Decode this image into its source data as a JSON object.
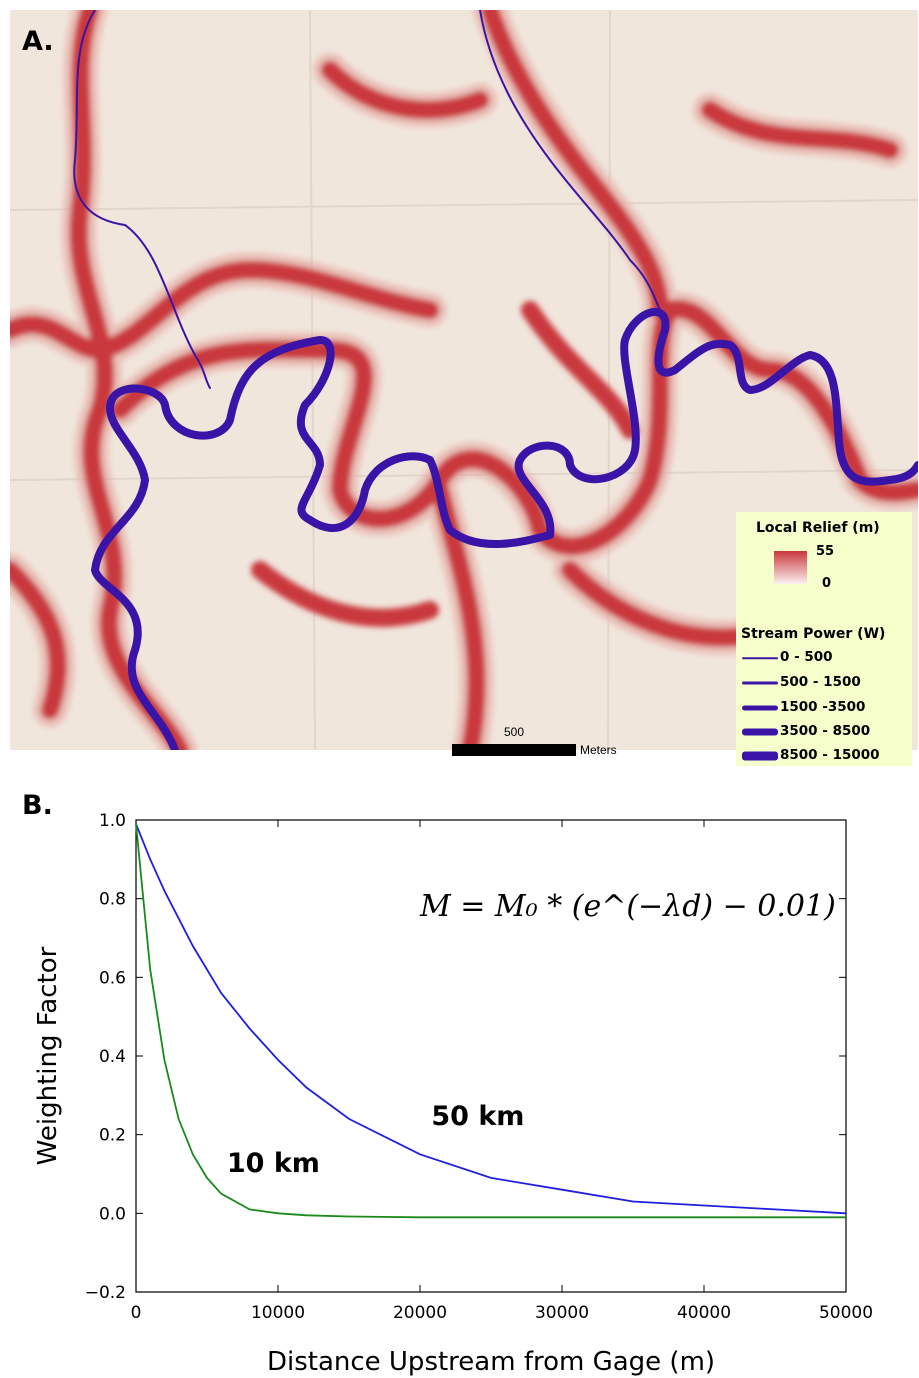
{
  "panel_a": {
    "letter": "A.",
    "legend": {
      "relief_title": "Local Relief (m)",
      "relief_max": "55",
      "relief_min": "0",
      "power_title": "Stream Power (W)",
      "power_classes": [
        "0 - 500",
        "500 - 1500",
        "1500 -3500",
        "3500 - 8500",
        "8500 - 15000"
      ]
    },
    "scalebar": {
      "value": "500",
      "unit": "Meters"
    },
    "colors": {
      "relief_high": "#c9383e",
      "relief_low": "#f1e6dc",
      "stream": "#3a14a6",
      "legend_bg": "#f6ffcc"
    }
  },
  "panel_b": {
    "letter": "B."
  },
  "chart_data": {
    "type": "line",
    "xlabel": "Distance Upstream from Gage (m)",
    "ylabel": "Weighting Factor",
    "xlim": [
      0,
      50000
    ],
    "ylim": [
      -0.2,
      1.0
    ],
    "xticks": [
      0,
      10000,
      20000,
      30000,
      40000,
      50000
    ],
    "yticks": [
      -0.2,
      0.0,
      0.2,
      0.4,
      0.6,
      0.8,
      1.0
    ],
    "ytick_labels": [
      "−0.2",
      "0.0",
      "0.2",
      "0.4",
      "0.6",
      "0.8",
      "1.0"
    ],
    "equation": "M = M₀ * (e^(−λd) − 0.01)",
    "x": [
      0,
      1000,
      2000,
      3000,
      4000,
      5000,
      6000,
      8000,
      10000,
      12000,
      15000,
      20000,
      25000,
      30000,
      35000,
      40000,
      45000,
      50000
    ],
    "series": [
      {
        "label": "50 km",
        "color": "#1f1fe0",
        "values": [
          0.99,
          0.9,
          0.82,
          0.75,
          0.68,
          0.62,
          0.56,
          0.47,
          0.39,
          0.32,
          0.24,
          0.15,
          0.09,
          0.06,
          0.03,
          0.02,
          0.01,
          0.0
        ]
      },
      {
        "label": "10 km",
        "color": "#1a8a1a",
        "values": [
          0.99,
          0.62,
          0.39,
          0.24,
          0.15,
          0.09,
          0.05,
          0.01,
          0.0,
          -0.005,
          -0.008,
          -0.01,
          -0.01,
          -0.01,
          -0.01,
          -0.01,
          -0.01,
          -0.01
        ]
      }
    ],
    "series_labels": [
      "50 km",
      "10 km"
    ],
    "grid": false
  }
}
